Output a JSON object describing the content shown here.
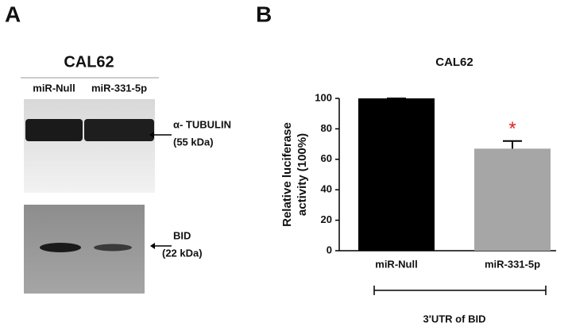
{
  "panel_a": {
    "label": "A",
    "title": "CAL62",
    "lanes": [
      "miR-Null",
      "miR-331-5p"
    ],
    "blots": [
      {
        "name": "α- TUBULIN",
        "size": "(55 kDa)"
      },
      {
        "name": "BID",
        "size": "(22 kDa)"
      }
    ]
  },
  "panel_b_label": "B",
  "chart_data": {
    "type": "bar",
    "title": "CAL62",
    "ylabel_lines": [
      "Relative luciferase",
      "activity (100%)"
    ],
    "categories": [
      "miR-Null",
      "miR-331-5p"
    ],
    "values": [
      100,
      67
    ],
    "errors": [
      0,
      5
    ],
    "colors": [
      "#000000",
      "#a6a6a6"
    ],
    "ylim": [
      0,
      100
    ],
    "yticks": [
      0,
      20,
      40,
      60,
      80,
      100
    ],
    "annotation": "*",
    "annotation_color": "#e02020",
    "group_label": "3'UTR of BID"
  }
}
